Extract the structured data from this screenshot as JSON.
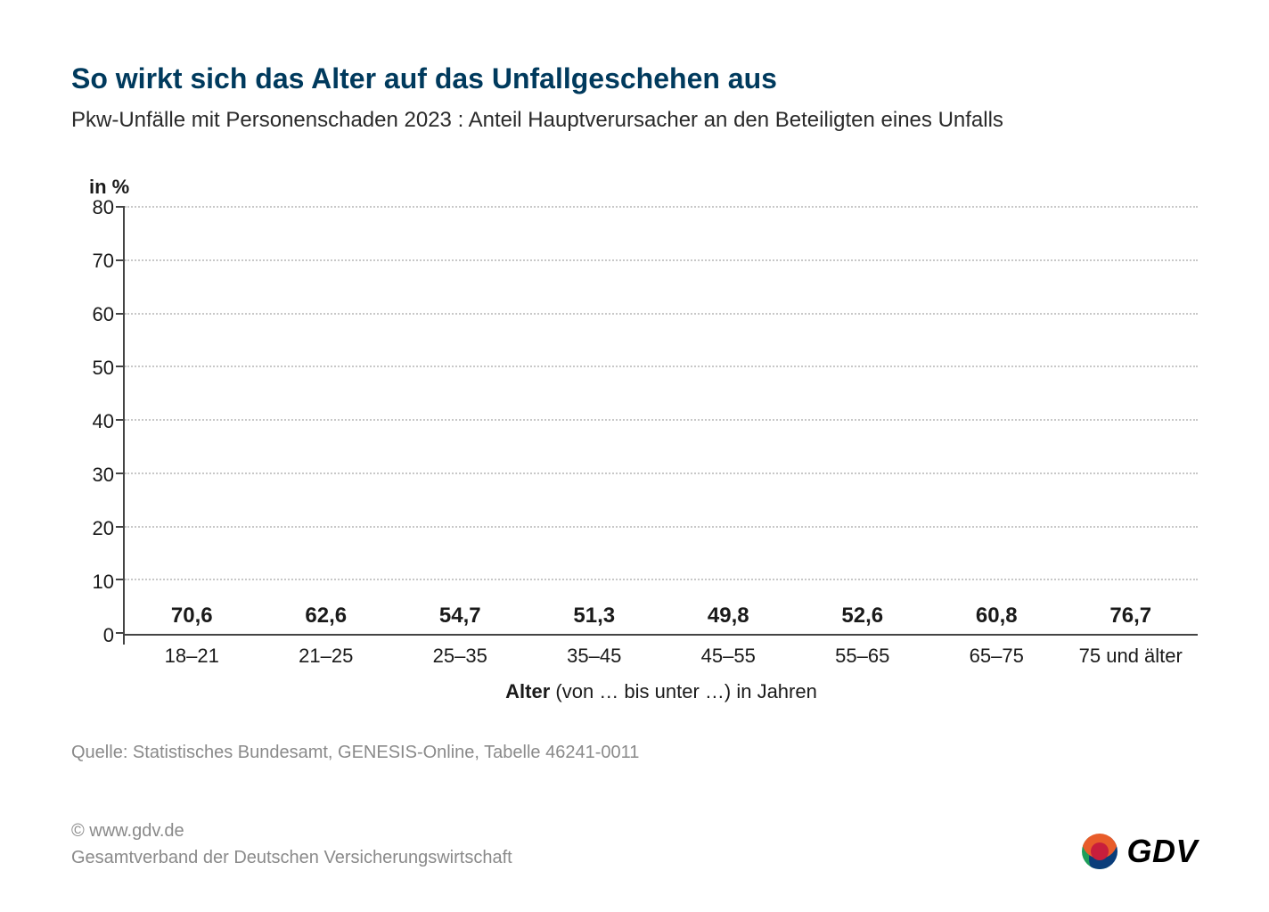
{
  "title": "So wirkt sich das Alter auf das Unfallgeschehen aus",
  "subtitle": "Pkw-Unfälle mit Personenschaden 2023 : Anteil Hauptverursacher an den Beteiligten eines Unfalls",
  "chart": {
    "type": "bar",
    "y_unit_label": "in %",
    "ylim": [
      0,
      80
    ],
    "ytick_step": 10,
    "y_ticks": [
      0,
      10,
      20,
      30,
      40,
      50,
      60,
      70,
      80
    ],
    "categories": [
      "18–21",
      "21–25",
      "25–35",
      "35–45",
      "45–55",
      "55–65",
      "65–75",
      "75 und älter"
    ],
    "values": [
      70.6,
      62.6,
      54.7,
      51.3,
      49.8,
      52.6,
      60.8,
      76.7
    ],
    "value_labels": [
      "70,6",
      "62,6",
      "54,7",
      "51,3",
      "49,8",
      "52,6",
      "60,8",
      "76,7"
    ],
    "bar_color": "#f8b864",
    "grid_color": "#c8c8c8",
    "axis_line_color": "#444444",
    "background_color": "#ffffff",
    "value_label_fontsize": 24,
    "tick_fontsize": 22,
    "bar_width_ratio": 0.48,
    "x_axis_title_bold": "Alter",
    "x_axis_title_rest": " (von … bis unter …) in Jahren"
  },
  "source": "Quelle: Statistisches Bundesamt, GENESIS-Online, Tabelle 46241-0011",
  "footer": {
    "copyright": "© www.gdv.de",
    "org": "Gesamtverband der Deutschen Versicherungswirtschaft",
    "logo_text": "GDV",
    "logo_colors": {
      "green": "#1e9e5a",
      "blue": "#0a3d7a",
      "orange": "#e85c2a",
      "red": "#c81e3c"
    }
  },
  "colors": {
    "title": "#003a5d",
    "text": "#1a1a1a",
    "muted": "#8a8a8a"
  }
}
